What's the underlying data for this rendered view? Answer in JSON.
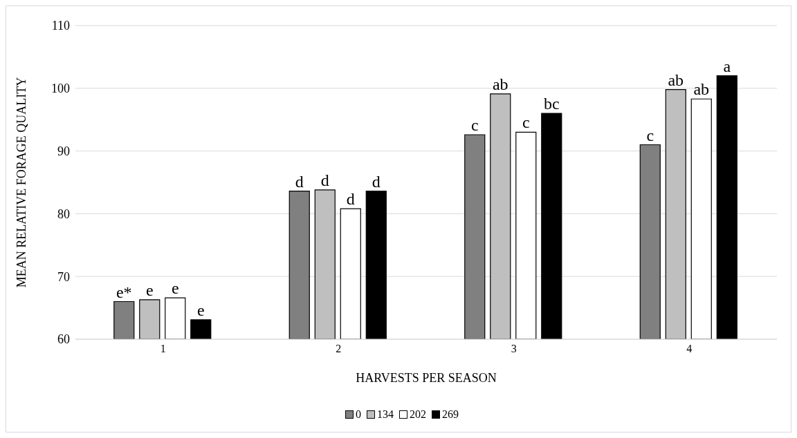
{
  "chart_data": {
    "type": "bar",
    "xlabel": "HARVESTS PER SEASON",
    "ylabel": "MEAN RELATIVE FORAGE QUALITY",
    "categories": [
      "1",
      "2",
      "3",
      "4"
    ],
    "series": [
      {
        "name": "0",
        "color": "#808080",
        "values": [
          66.0,
          83.6,
          92.6,
          91.0
        ],
        "value_labels": [
          "e*",
          "d",
          "c",
          "c"
        ]
      },
      {
        "name": "134",
        "color": "#bfbfbf",
        "values": [
          66.3,
          83.8,
          99.1,
          99.8
        ],
        "value_labels": [
          "e",
          "d",
          "ab",
          "ab"
        ]
      },
      {
        "name": "202",
        "color": "#ffffff",
        "values": [
          66.6,
          80.8,
          93.0,
          98.3
        ],
        "value_labels": [
          "e",
          "d",
          "c",
          "ab"
        ]
      },
      {
        "name": "269",
        "color": "#000000",
        "values": [
          63.1,
          83.6,
          96.0,
          102.0
        ],
        "value_labels": [
          "e",
          "d",
          "bc",
          "a"
        ]
      }
    ],
    "ylim": [
      60,
      110
    ],
    "yticks": [
      60,
      70,
      80,
      90,
      100,
      110
    ],
    "grid": "y",
    "legend": "bottom"
  }
}
